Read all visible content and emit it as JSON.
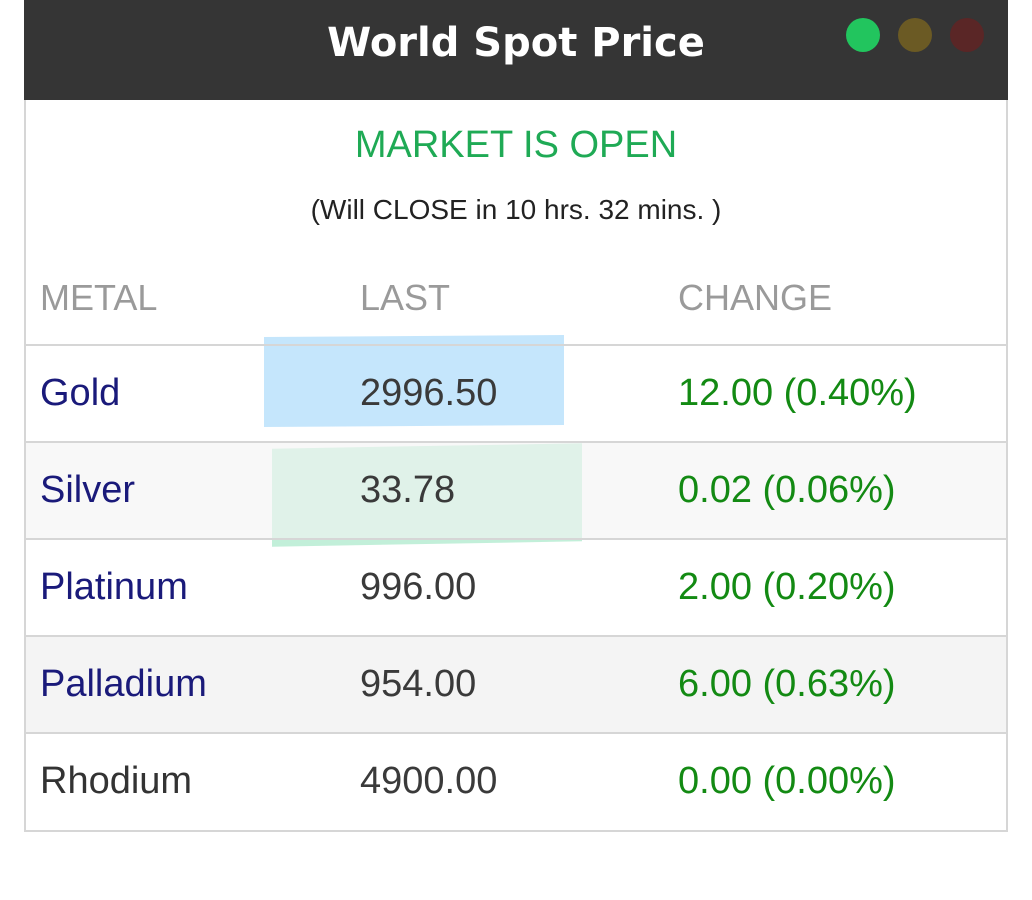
{
  "widget": {
    "title": "World Spot Price",
    "status_text": "MARKET IS OPEN",
    "countdown_text": "(Will CLOSE in 10 hrs. 32 mins. )",
    "window_controls": [
      "green-dot",
      "amber-dot",
      "red-dot"
    ]
  },
  "table": {
    "headers": [
      "METAL",
      "LAST",
      "CHANGE"
    ],
    "rows": [
      {
        "metal": "Gold",
        "last": "2996.50",
        "change": "12.00 (0.40%)"
      },
      {
        "metal": "Silver",
        "last": "33.78",
        "change": "0.02 (0.06%)"
      },
      {
        "metal": "Platinum",
        "last": "996.00",
        "change": "2.00 (0.20%)"
      },
      {
        "metal": "Palladium",
        "last": "954.00",
        "change": "6.00 (0.63%)"
      },
      {
        "metal": "Rhodium",
        "last": "4900.00",
        "change": "0.00 (0.00%)"
      }
    ]
  },
  "colors": {
    "titlebar": "#353535",
    "status_open": "#1faa55",
    "change_positive": "#138a13",
    "metal_link": "#1a1a7a",
    "dot_green": "#22c55e",
    "dot_amber": "#6b5a24",
    "dot_red": "#5a2626",
    "highlight_blue": "#b8e2fa",
    "highlight_green": "#bdeed6"
  }
}
